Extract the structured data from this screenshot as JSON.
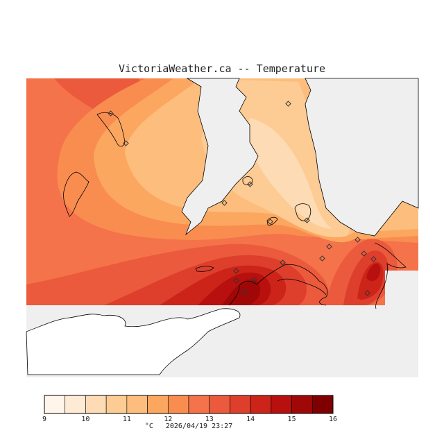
{
  "map": {
    "title": "VictoriaWeather.ca -- Temperature",
    "unit": "°C",
    "timestamp": "2026/04/19 23:27"
  },
  "legend": {
    "tick_labels": [
      "9",
      "10",
      "11",
      "12",
      "13",
      "14",
      "15",
      "16"
    ],
    "colors": [
      "#fff5eb",
      "#feebd6",
      "#fddbb5",
      "#fdcb94",
      "#fdbd7c",
      "#fca760",
      "#f98d50",
      "#f4734a",
      "#eb5a3c",
      "#dd3f2c",
      "#cc2418",
      "#b80f0f",
      "#a00808",
      "#7f0000"
    ]
  },
  "colors": {
    "land_outline": "#000000",
    "no_data": "#efefef",
    "station_marker": "#333333"
  }
}
